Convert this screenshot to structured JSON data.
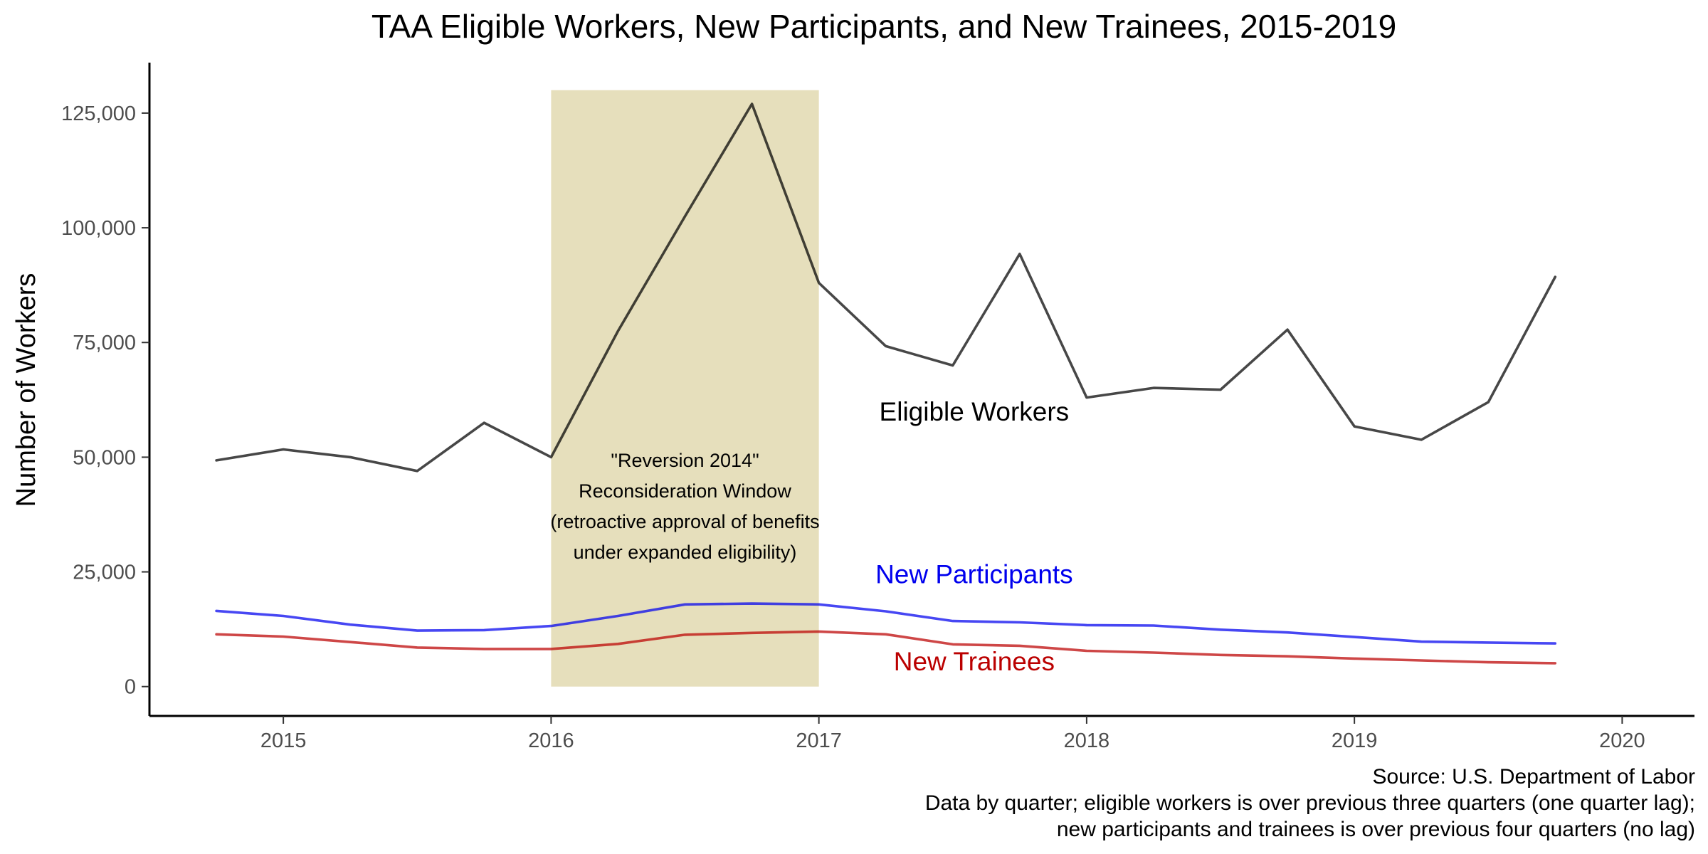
{
  "chart_data": {
    "type": "line",
    "title": "TAA Eligible Workers, New Participants, and New Trainees, 2015-2019",
    "xlabel": "",
    "ylabel": "Number of Workers",
    "xlim": [
      2014.5,
      2020.27
    ],
    "ylim": [
      -6400,
      136000
    ],
    "x_ticks": [
      2015,
      2016,
      2017,
      2018,
      2019,
      2020
    ],
    "x_tick_labels": [
      "2015",
      "2016",
      "2017",
      "2018",
      "2019",
      "2020"
    ],
    "y_ticks": [
      0,
      25000,
      50000,
      75000,
      100000,
      125000
    ],
    "y_tick_labels": [
      "0",
      "25,000",
      "50,000",
      "75,000",
      "100,000",
      "125,000"
    ],
    "x": [
      2014.75,
      2015.0,
      2015.25,
      2015.5,
      2015.75,
      2016.0,
      2016.25,
      2016.5,
      2016.75,
      2017.0,
      2017.25,
      2017.5,
      2017.75,
      2018.0,
      2018.25,
      2018.5,
      2018.75,
      2019.0,
      2019.25,
      2019.5,
      2019.75
    ],
    "series": [
      {
        "name": "Eligible Workers",
        "color": "#000000",
        "values": [
          49300,
          51700,
          50000,
          47000,
          57500,
          50000,
          77500,
          102500,
          127000,
          88000,
          74200,
          70000,
          94300,
          63000,
          65100,
          64700,
          77800,
          56700,
          53800,
          62000,
          89300
        ]
      },
      {
        "name": "New Participants",
        "color": "#0000ee",
        "values": [
          16500,
          15400,
          13500,
          12200,
          12300,
          13200,
          15400,
          17900,
          18100,
          17900,
          16400,
          14300,
          14000,
          13400,
          13300,
          12400,
          11800,
          10800,
          9800,
          9600,
          9400
        ]
      },
      {
        "name": "New Trainees",
        "color": "#bb0000",
        "values": [
          11400,
          10900,
          9700,
          8500,
          8200,
          8200,
          9300,
          11300,
          11700,
          12000,
          11400,
          9200,
          8900,
          7800,
          7400,
          6900,
          6600,
          6100,
          5700,
          5300,
          5100
        ]
      }
    ],
    "shaded_region": {
      "x_start": 2016.0,
      "x_end": 2017.0,
      "y_top": 130000,
      "color": "#e6dfbc",
      "label_lines": [
        "\"Reversion 2014\"",
        "Reconsideration Window",
        "(retroactive approval of benefits",
        "under expanded eligibility)"
      ]
    },
    "series_labels": [
      {
        "text": "Eligible Workers",
        "x": 2017.58,
        "y": 58000,
        "color": "#000000"
      },
      {
        "text": "New Participants",
        "x": 2017.58,
        "y": 22500,
        "color": "#0000ee"
      },
      {
        "text": "New Trainees",
        "x": 2017.58,
        "y": 3500,
        "color": "#bb0000"
      }
    ],
    "caption_lines": [
      "Source: U.S. Department of Labor",
      "Data by quarter; eligible workers is over previous three quarters (one quarter lag);",
      "new participants and trainees is over previous four quarters (no lag)"
    ],
    "grid": false,
    "legend": "none"
  }
}
